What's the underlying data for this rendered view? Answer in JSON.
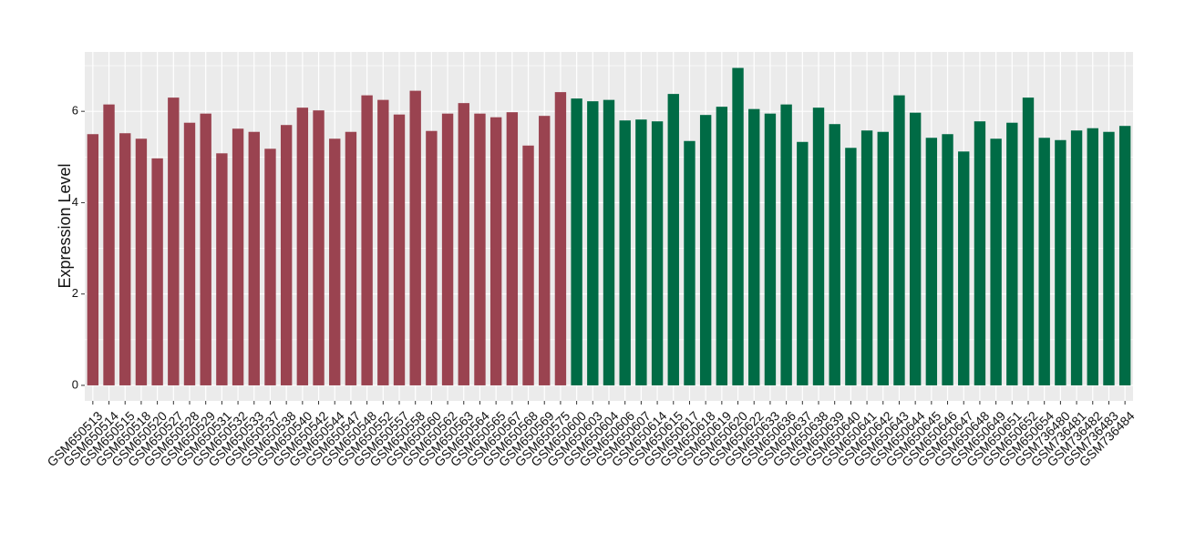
{
  "chart_data": {
    "type": "bar",
    "y_label": "Expression Level",
    "categories": [
      "GSM650513",
      "GSM650514",
      "GSM650515",
      "GSM650518",
      "GSM650520",
      "GSM650527",
      "GSM650528",
      "GSM650529",
      "GSM650531",
      "GSM650532",
      "GSM650533",
      "GSM650537",
      "GSM650538",
      "GSM650540",
      "GSM650542",
      "GSM650544",
      "GSM650547",
      "GSM650548",
      "GSM650552",
      "GSM650557",
      "GSM650558",
      "GSM650560",
      "GSM650562",
      "GSM650563",
      "GSM650564",
      "GSM650565",
      "GSM650567",
      "GSM650568",
      "GSM650569",
      "GSM650575",
      "GSM650600",
      "GSM650603",
      "GSM650604",
      "GSM650606",
      "GSM650607",
      "GSM650614",
      "GSM650615",
      "GSM650617",
      "GSM650618",
      "GSM650619",
      "GSM650620",
      "GSM650622",
      "GSM650633",
      "GSM650636",
      "GSM650637",
      "GSM650638",
      "GSM650639",
      "GSM650640",
      "GSM650641",
      "GSM650642",
      "GSM650643",
      "GSM650644",
      "GSM650645",
      "GSM650646",
      "GSM650647",
      "GSM650648",
      "GSM650649",
      "GSM650651",
      "GSM650652",
      "GSM650654",
      "GSM736480",
      "GSM736481",
      "GSM736482",
      "GSM736483",
      "GSM736484"
    ],
    "values": [
      5.5,
      6.15,
      5.52,
      5.4,
      4.97,
      6.3,
      5.75,
      5.95,
      5.08,
      5.62,
      5.55,
      5.18,
      5.7,
      6.08,
      6.02,
      5.4,
      5.55,
      6.35,
      6.25,
      5.93,
      6.45,
      5.57,
      5.95,
      6.18,
      5.95,
      5.87,
      5.98,
      5.25,
      5.9,
      6.42,
      6.28,
      6.22,
      6.25,
      5.8,
      5.82,
      5.78,
      6.38,
      5.35,
      5.92,
      6.1,
      6.95,
      6.05,
      5.95,
      6.15,
      5.33,
      6.08,
      5.72,
      5.2,
      5.58,
      5.55,
      6.35,
      5.97,
      5.42,
      5.5,
      5.12,
      5.78,
      5.4,
      5.75,
      6.3,
      5.42,
      5.37,
      5.58,
      5.63,
      5.55,
      5.68
    ],
    "colors": [
      "#9a4350",
      "#9a4350",
      "#9a4350",
      "#9a4350",
      "#9a4350",
      "#9a4350",
      "#9a4350",
      "#9a4350",
      "#9a4350",
      "#9a4350",
      "#9a4350",
      "#9a4350",
      "#9a4350",
      "#9a4350",
      "#9a4350",
      "#9a4350",
      "#9a4350",
      "#9a4350",
      "#9a4350",
      "#9a4350",
      "#9a4350",
      "#9a4350",
      "#9a4350",
      "#9a4350",
      "#9a4350",
      "#9a4350",
      "#9a4350",
      "#9a4350",
      "#9a4350",
      "#9a4350",
      "#006b45",
      "#006b45",
      "#006b45",
      "#006b45",
      "#006b45",
      "#006b45",
      "#006b45",
      "#006b45",
      "#006b45",
      "#006b45",
      "#006b45",
      "#006b45",
      "#006b45",
      "#006b45",
      "#006b45",
      "#006b45",
      "#006b45",
      "#006b45",
      "#006b45",
      "#006b45",
      "#006b45",
      "#006b45",
      "#006b45",
      "#006b45",
      "#006b45",
      "#006b45",
      "#006b45",
      "#006b45",
      "#006b45",
      "#006b45",
      "#006b45",
      "#006b45",
      "#006b45",
      "#006b45",
      "#006b45"
    ],
    "ylim": [
      -0.34,
      7.3
    ],
    "yticks": [
      0,
      2,
      4,
      6
    ],
    "minor_yticks": [
      1,
      3,
      5,
      7
    ],
    "grid": true,
    "panel_color": "#ebebeb"
  }
}
